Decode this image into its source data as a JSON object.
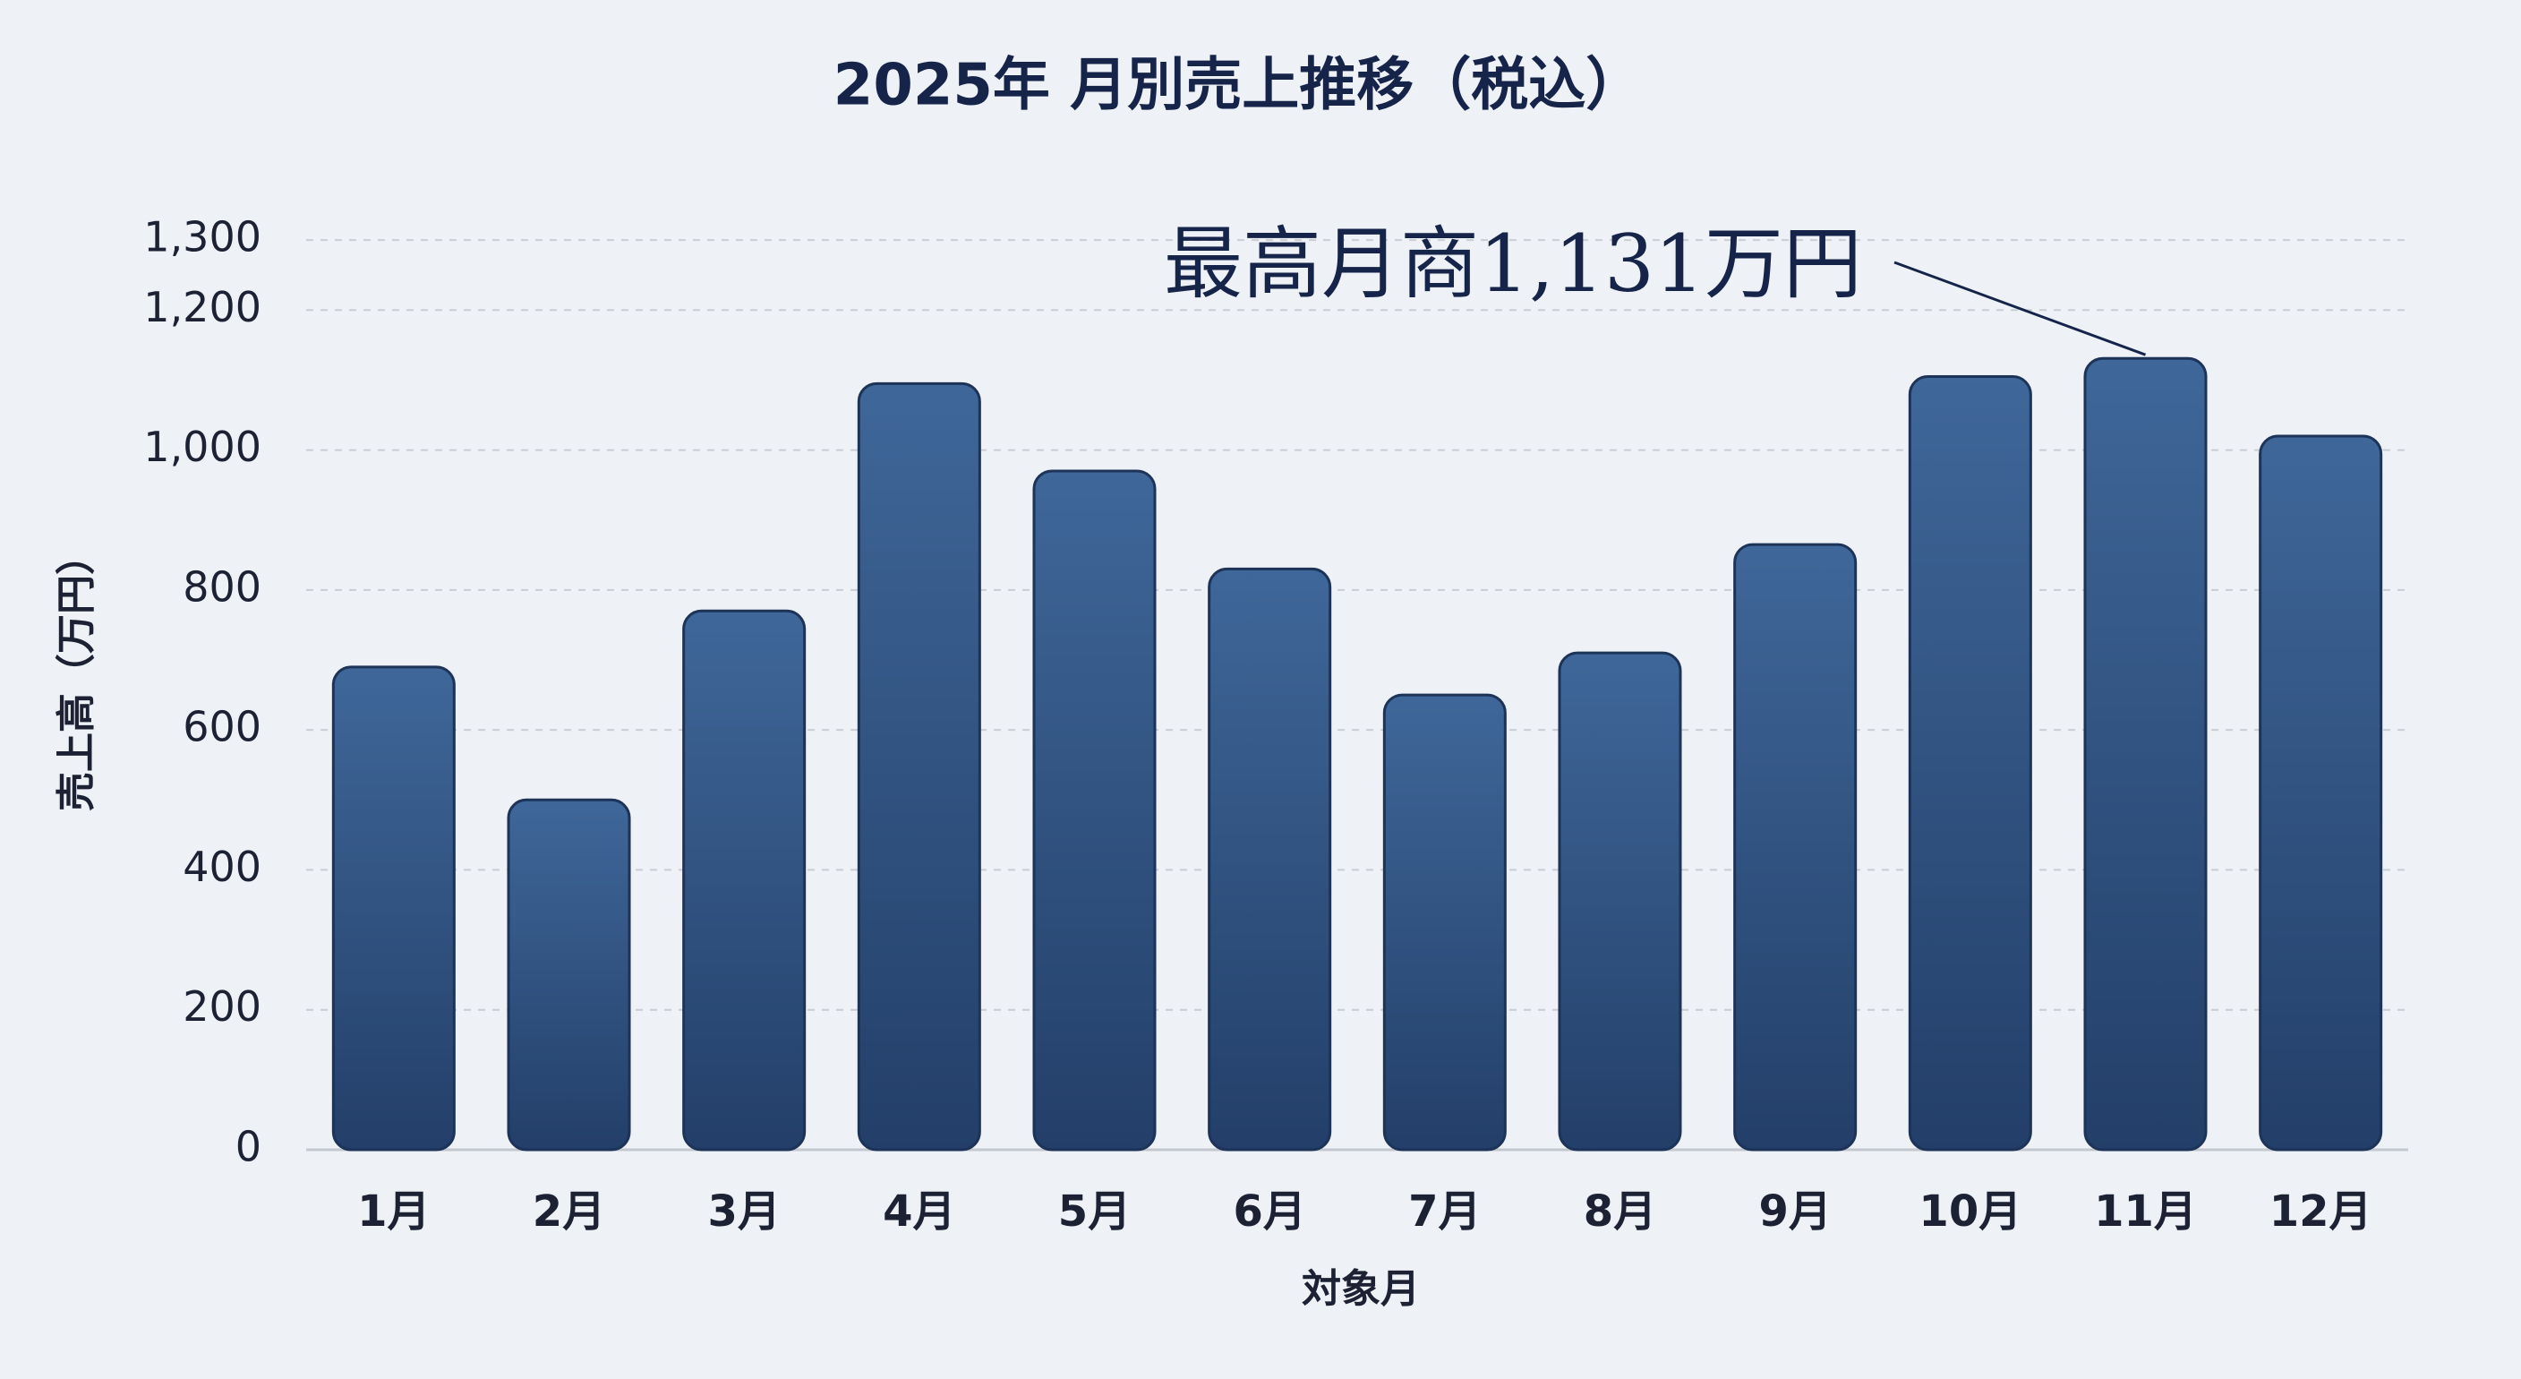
{
  "chart_data": {
    "type": "bar",
    "title": "2025年 月別売上推移（税込）",
    "x_label": "対象月",
    "y_label": "売上高（万円）",
    "annotation": "最高月商1,131万円",
    "categories": [
      "1月",
      "2月",
      "3月",
      "4月",
      "5月",
      "6月",
      "7月",
      "8月",
      "9月",
      "10月",
      "11月",
      "12月"
    ],
    "values": [
      690,
      500,
      770,
      1095,
      970,
      830,
      650,
      710,
      865,
      1105,
      1131,
      1020
    ],
    "color": "#2f5283",
    "ylim": [
      0,
      1400
    ],
    "yticks": [
      0,
      {
        "value": 200,
        "label": "200"
      },
      400,
      600,
      800,
      {
        "value": 1000,
        "label": "1,000"
      },
      {
        "value": 1200,
        "label": "1,200"
      },
      {
        "value": 1300,
        "label": "1,300"
      }
    ],
    "grid": true
  }
}
